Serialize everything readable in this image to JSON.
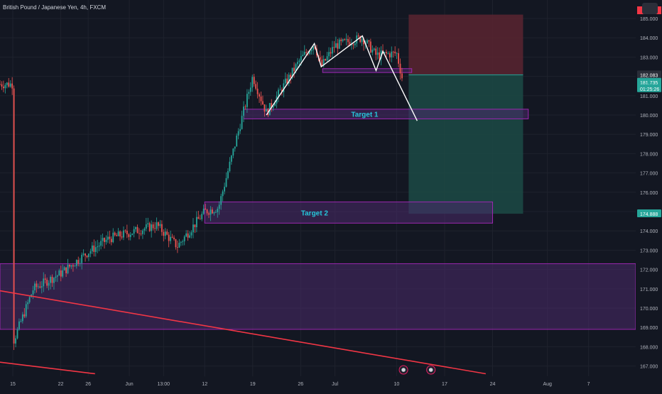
{
  "header": {
    "symbol": "British Pound / Japanese Yen, 4h, FXCM"
  },
  "colors": {
    "background": "#131722",
    "up_candle": "#26a69a",
    "down_candle": "#ef5350",
    "zone_fill": "#4a2a6a",
    "zone_border": "#9c27b0",
    "target_label": "#26c6da",
    "trendline": "#f23645",
    "pattern_line": "#ffffff",
    "stop_zone": "#5a2530",
    "profit_zone": "#1c4a45"
  },
  "price_scale": {
    "ticks": [
      "185.000",
      "184.000",
      "183.000",
      "182.000",
      "181.000",
      "180.000",
      "179.000",
      "178.000",
      "177.000",
      "176.000",
      "175.000",
      "174.000",
      "173.000",
      "172.000",
      "171.000",
      "170.000",
      "169.000",
      "168.000",
      "167.000"
    ],
    "badges": {
      "current_price": "181.735",
      "countdown": "01:25:26",
      "entry_price": "182.083",
      "target_price": "174.888"
    }
  },
  "time_scale": {
    "ticks": [
      "15",
      "22",
      "26",
      "Jun",
      "13:00",
      "12",
      "19",
      "26",
      "Jul",
      "10",
      "17",
      "24",
      "Aug",
      "7"
    ]
  },
  "chart_data": {
    "type": "candlestick",
    "title": "British Pound / Japanese Yen, 4h, FXCM",
    "ylim": [
      166.5,
      185.5
    ],
    "price_path_keypoints": [
      {
        "date": "May 15",
        "price": 168.2
      },
      {
        "date": "May 18",
        "price": 171.0
      },
      {
        "date": "May 22",
        "price": 171.8
      },
      {
        "date": "May 26",
        "price": 172.9
      },
      {
        "date": "May 29",
        "price": 173.6
      },
      {
        "date": "Jun 5",
        "price": 174.3
      },
      {
        "date": "Jun 8",
        "price": 173.2
      },
      {
        "date": "Jun 12",
        "price": 175.0
      },
      {
        "date": "Jun 14",
        "price": 175.2
      },
      {
        "date": "Jun 19",
        "price": 182.0
      },
      {
        "date": "Jun 21",
        "price": 180.1
      },
      {
        "date": "Jun 26",
        "price": 182.9
      },
      {
        "date": "Jun 28",
        "price": 183.7
      },
      {
        "date": "Jun 29",
        "price": 182.5
      },
      {
        "date": "Jul 1",
        "price": 183.6
      },
      {
        "date": "Jul 5",
        "price": 184.0
      },
      {
        "date": "Jul 7",
        "price": 183.1
      },
      {
        "date": "Jul 10",
        "price": 183.2
      },
      {
        "date": "Jul 11",
        "price": 181.6
      }
    ],
    "annotations": [
      {
        "type": "zone",
        "label": "Target 1",
        "y_range": [
          179.8,
          180.3
        ]
      },
      {
        "type": "zone",
        "label": "Target 2",
        "y_range": [
          174.4,
          175.5
        ]
      },
      {
        "type": "zone",
        "label": "",
        "y_range": [
          168.9,
          172.3
        ]
      },
      {
        "type": "zone",
        "label": "",
        "y_range": [
          182.2,
          182.4
        ]
      },
      {
        "type": "pattern_line",
        "label": "",
        "points": [
          {
            "date": "Jun 21",
            "price": 180.0
          },
          {
            "date": "Jun 28",
            "price": 183.7
          },
          {
            "date": "Jun 29",
            "price": 182.5
          },
          {
            "date": "Jul 5",
            "price": 184.1
          },
          {
            "date": "Jul 7",
            "price": 182.3
          },
          {
            "date": "Jul 8",
            "price": 183.3
          },
          {
            "date": "Jul 13",
            "price": 179.7
          }
        ]
      },
      {
        "type": "trendline",
        "label": "",
        "points": [
          {
            "date": "May 15",
            "price": 170.9
          },
          {
            "date": "Jul 23",
            "price": 166.6
          }
        ]
      },
      {
        "type": "trendline",
        "label": "",
        "points": [
          {
            "date": "May 15",
            "price": 167.2
          },
          {
            "date": "May 27",
            "price": 166.6
          }
        ]
      },
      {
        "type": "position",
        "label": "short",
        "entry": 182.083,
        "stop": 185.2,
        "target": 174.888
      }
    ]
  }
}
